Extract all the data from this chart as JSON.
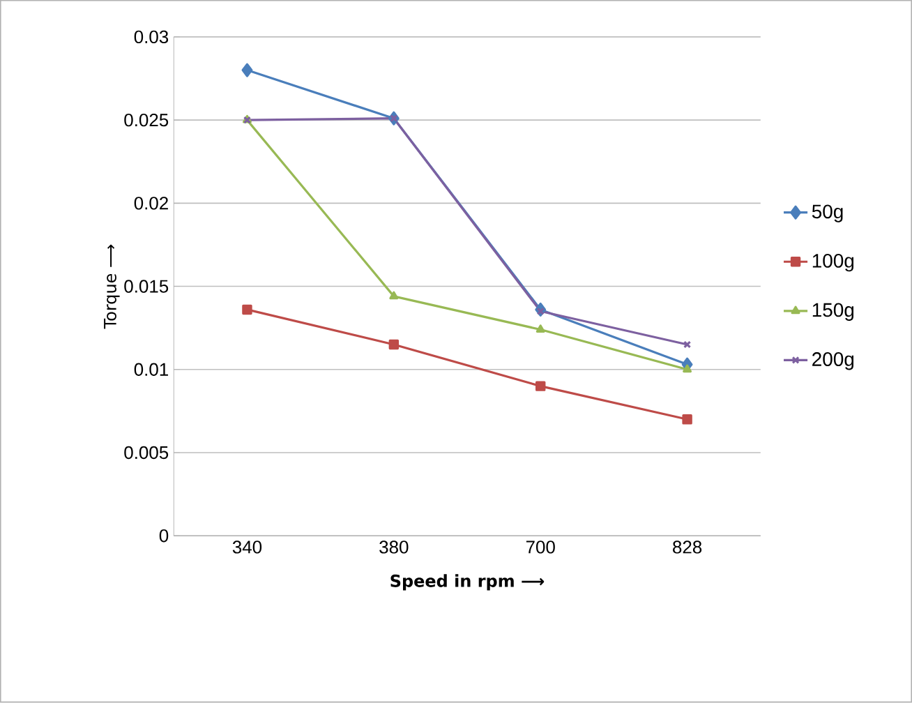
{
  "chart_data": {
    "type": "line",
    "xlabel": "Speed in rpm ⟶",
    "ylabel": "Torque ⟶",
    "categories": [
      "340",
      "380",
      "700",
      "828"
    ],
    "ylim": [
      0,
      0.03
    ],
    "yticks": [
      0,
      0.005,
      0.01,
      0.015,
      0.02,
      0.025,
      0.03
    ],
    "grid": "y",
    "legend": "right",
    "line_style": "solid",
    "series": [
      {
        "name": "50g",
        "color": "#4a7ebb",
        "marker": "diamond",
        "values": [
          0.028,
          0.0251,
          0.0136,
          0.0103
        ]
      },
      {
        "name": "100g",
        "color": "#be4b48",
        "marker": "square",
        "values": [
          0.0136,
          0.0115,
          0.009,
          0.007
        ]
      },
      {
        "name": "150g",
        "color": "#98b954",
        "marker": "triangle",
        "values": [
          0.025,
          0.0144,
          0.0124,
          0.01
        ]
      },
      {
        "name": "200g",
        "color": "#7d60a0",
        "marker": "cross",
        "values": [
          0.025,
          0.0251,
          0.0135,
          0.0115
        ]
      }
    ]
  }
}
